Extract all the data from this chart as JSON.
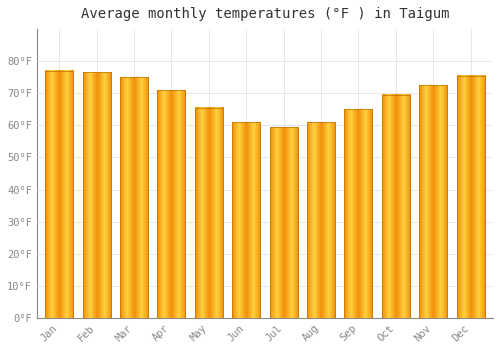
{
  "title": "Average monthly temperatures (°F ) in Taigum",
  "months": [
    "Jan",
    "Feb",
    "Mar",
    "Apr",
    "May",
    "Jun",
    "Jul",
    "Aug",
    "Sep",
    "Oct",
    "Nov",
    "Dec"
  ],
  "values": [
    77,
    76.5,
    75,
    71,
    65.5,
    61,
    59.5,
    61,
    65,
    69.5,
    72.5,
    75.5
  ],
  "bar_color_light": "#FFD040",
  "bar_color_dark": "#F0900A",
  "bar_edge_color": "#C07000",
  "ylim": [
    0,
    90
  ],
  "yticks": [
    0,
    10,
    20,
    30,
    40,
    50,
    60,
    70,
    80
  ],
  "ytick_labels": [
    "0°F",
    "10°F",
    "20°F",
    "30°F",
    "40°F",
    "50°F",
    "60°F",
    "70°F",
    "80°F"
  ],
  "background_color": "#ffffff",
  "plot_bg_color": "#ffffff",
  "grid_color": "#dddddd",
  "title_fontsize": 10,
  "tick_fontsize": 7.5,
  "tick_color": "#888888",
  "title_color": "#333333"
}
